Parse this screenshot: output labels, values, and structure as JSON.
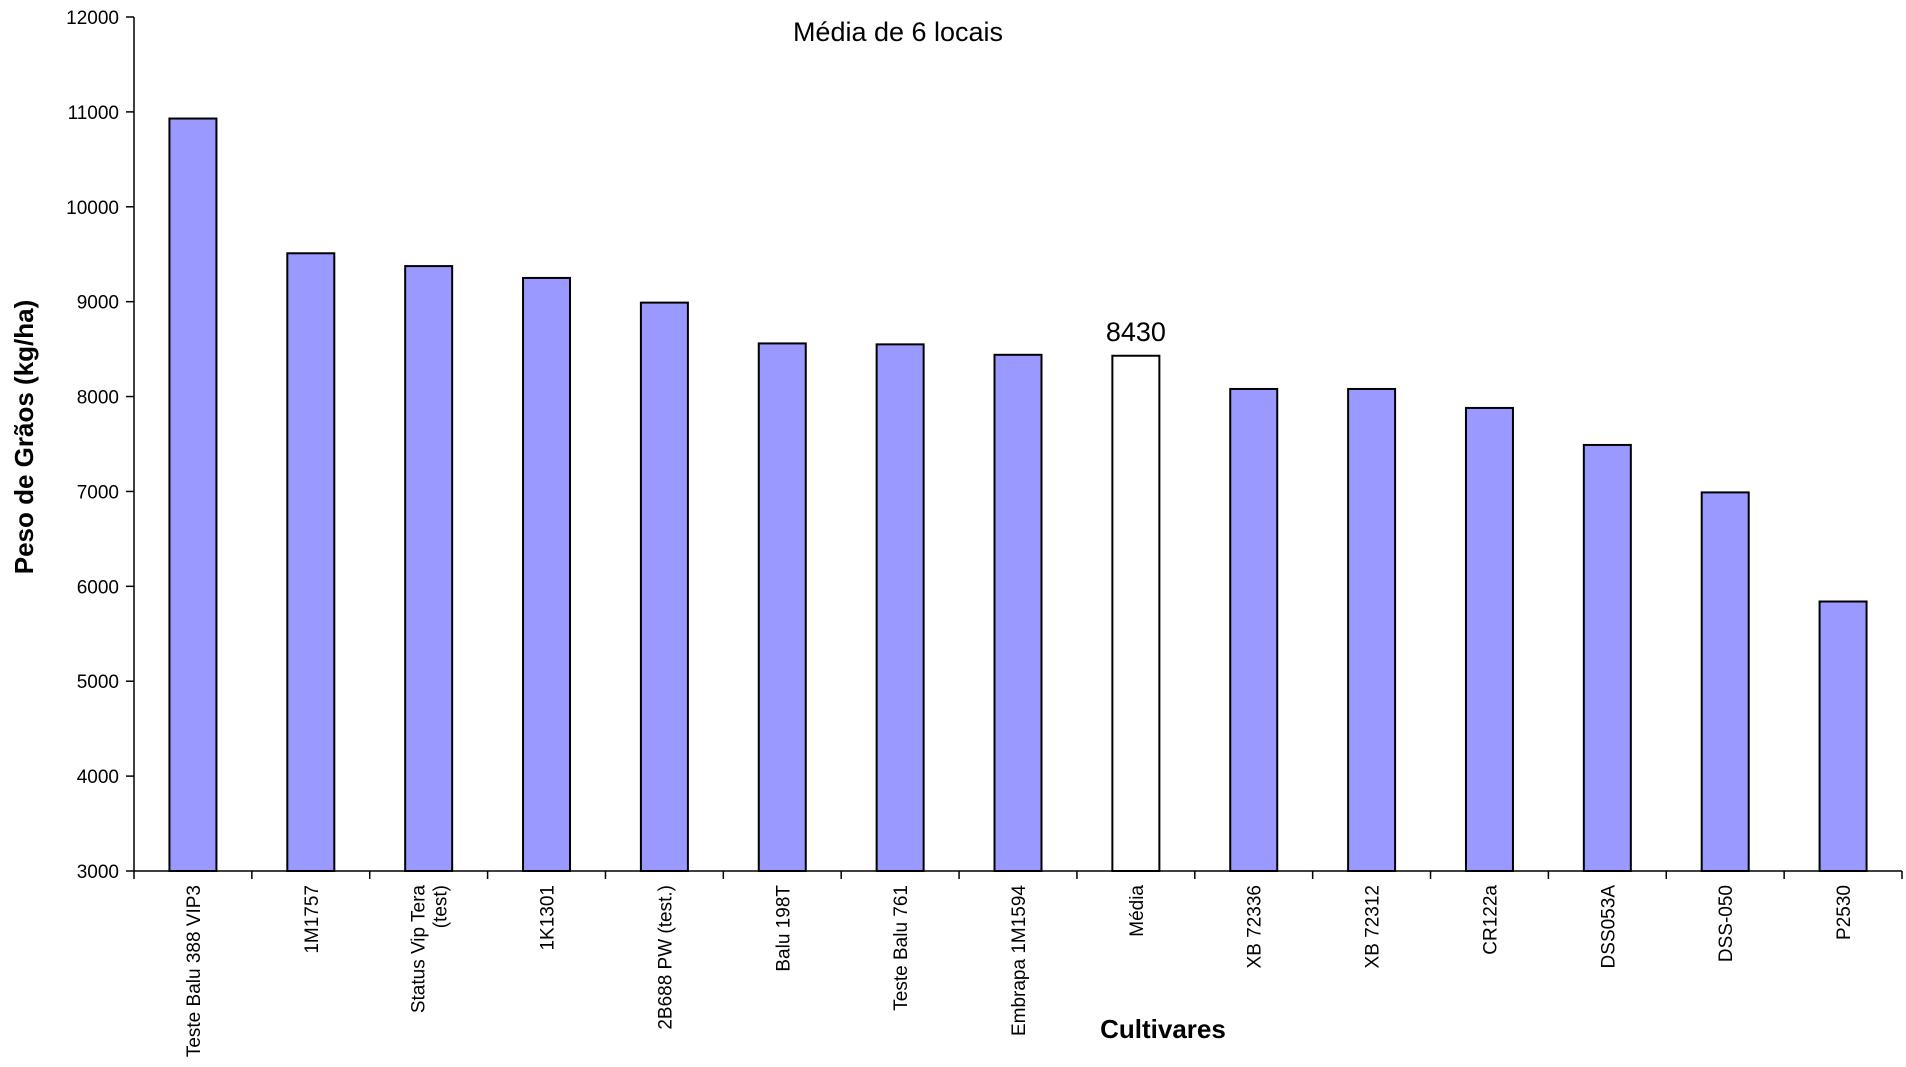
{
  "chart_data": {
    "type": "bar",
    "title": "Média de 6 locais",
    "xlabel": "Cultivares",
    "ylabel": "Peso de Grãos (kg/ha)",
    "ylim": [
      3000,
      12000
    ],
    "yticks": [
      3000,
      4000,
      5000,
      6000,
      7000,
      8000,
      9000,
      10000,
      11000,
      12000
    ],
    "grid": false,
    "legend": "none",
    "categories": [
      [
        "Teste Balu 388 VIP3"
      ],
      [
        "1M1757"
      ],
      [
        "Status Vip Tera",
        "(test)"
      ],
      [
        "1K1301"
      ],
      [
        "2B688 PW (test.)"
      ],
      [
        "Balu 198T"
      ],
      [
        "Teste Balu 761"
      ],
      [
        "Embrapa 1M1594"
      ],
      [
        "Média"
      ],
      [
        "XB 72336"
      ],
      [
        "XB 72312"
      ],
      [
        "CR122a"
      ],
      [
        "DSS053A"
      ],
      [
        "DSS-050"
      ],
      [
        "P2530"
      ]
    ],
    "values": [
      10930,
      9510,
      9375,
      9250,
      8990,
      8560,
      8550,
      8440,
      8430,
      8080,
      8080,
      7880,
      7490,
      6990,
      5840
    ],
    "highlight_index": 8,
    "data_labels": [
      {
        "index": 8,
        "text": "8430"
      }
    ],
    "colors": {
      "bar_fill": "#9999ff",
      "highlight_fill": "#ffffff",
      "bar_stroke": "#000000",
      "axis": "#000000"
    }
  }
}
